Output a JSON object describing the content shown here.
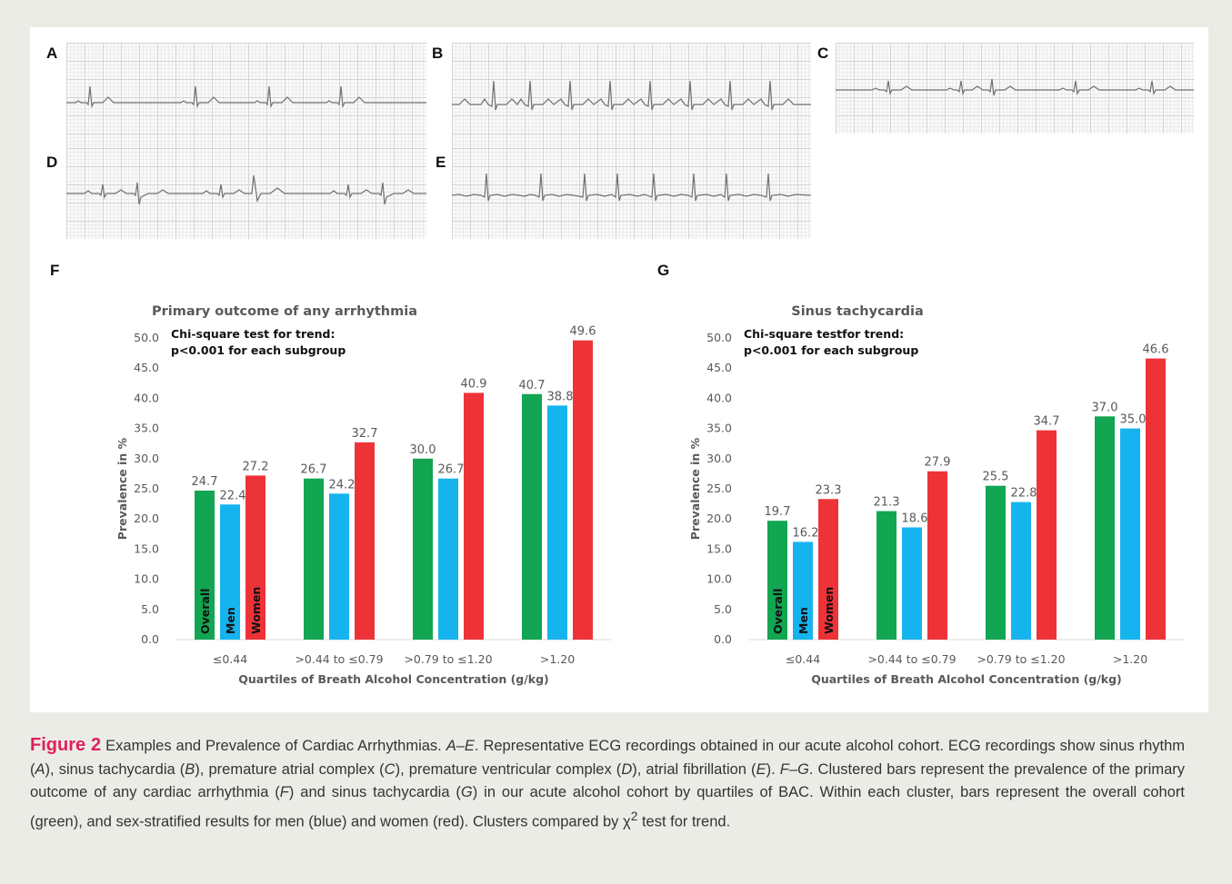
{
  "ecg_panels": [
    {
      "letter": "A",
      "rhythm": "sinus rhythm"
    },
    {
      "letter": "B",
      "rhythm": "sinus tachycardia"
    },
    {
      "letter": "C",
      "rhythm": "premature atrial complex"
    },
    {
      "letter": "D",
      "rhythm": "premature ventricular complex"
    },
    {
      "letter": "E",
      "rhythm": "atrial fibrillation"
    }
  ],
  "colors": {
    "overall": "#12a552",
    "men": "#16b4ef",
    "women": "#ee3338",
    "axis_text": "#595959",
    "title_text": "#595959",
    "caption_accent": "#e0205a"
  },
  "chart_data": [
    {
      "panel_letter": "F",
      "type": "bar",
      "title": "Primary outcome of any arrhythmia",
      "annotation_line1": "Chi-square test for trend:",
      "annotation_line2": "p<0.001 for each subgroup",
      "xlabel": "Quartiles of Breath Alcohol Concentration (g/kg)",
      "ylabel": "Prevalence in %",
      "ylim": [
        0,
        50
      ],
      "yticks": [
        "0.0",
        "5.0",
        "10.0",
        "15.0",
        "20.0",
        "25.0",
        "30.0",
        "35.0",
        "40.0",
        "45.0",
        "50.0"
      ],
      "categories": [
        "≤0.44",
        ">0.44 to ≤0.79",
        ">0.79 to ≤1.20",
        ">1.20"
      ],
      "series": [
        {
          "name": "Overall",
          "values": [
            24.7,
            26.7,
            30.0,
            40.7
          ],
          "labels": [
            "24.7",
            "26.7",
            "30.0",
            "40.7"
          ]
        },
        {
          "name": "Men",
          "values": [
            22.4,
            24.2,
            26.7,
            38.8
          ],
          "labels": [
            "22.4",
            "24.2",
            "26.7",
            "38.8"
          ]
        },
        {
          "name": "Women",
          "values": [
            27.2,
            32.7,
            40.9,
            49.6
          ],
          "labels": [
            "27.2",
            "32.7",
            "40.9",
            "49.6"
          ]
        }
      ],
      "legend": "series names inside first cluster bars",
      "grid": false
    },
    {
      "panel_letter": "G",
      "type": "bar",
      "title": "Sinus tachycardia",
      "annotation_line1": "Chi-square testfor trend:",
      "annotation_line2": "p<0.001 for each subgroup",
      "xlabel": "Quartiles of Breath Alcohol Concentration (g/kg)",
      "ylabel": "Prevalence in %",
      "ylim": [
        0,
        50
      ],
      "yticks": [
        "0.0",
        "5.0",
        "10.0",
        "15.0",
        "20.0",
        "25.0",
        "30.0",
        "35.0",
        "40.0",
        "45.0",
        "50.0"
      ],
      "categories": [
        "≤0.44",
        ">0.44 to ≤0.79",
        ">0.79 to ≤1.20",
        ">1.20"
      ],
      "series": [
        {
          "name": "Overall",
          "values": [
            19.7,
            21.3,
            25.5,
            37.0
          ],
          "labels": [
            "19.7",
            "21.3",
            "25.5",
            "37.0"
          ]
        },
        {
          "name": "Men",
          "values": [
            16.2,
            18.6,
            22.8,
            35.0
          ],
          "labels": [
            "16.2",
            "18.6",
            "22.8",
            "35.0"
          ]
        },
        {
          "name": "Women",
          "values": [
            23.3,
            27.9,
            34.7,
            46.6
          ],
          "labels": [
            "23.3",
            "27.9",
            "34.7",
            "46.6"
          ]
        }
      ],
      "legend": "series names inside first cluster bars",
      "grid": false
    }
  ],
  "caption": {
    "label": "Figure 2",
    "title": "Examples and Prevalence of Cardiac Arrhythmias.",
    "range1": "A–E",
    "text1": ". Representative ECG recordings obtained in our acute alcohol cohort. ECG recordings show sinus rhythm (",
    "a": "A",
    "text2": "), sinus tachycardia (",
    "b": "B",
    "text3": "), premature atrial complex (",
    "c": "C",
    "text4": "), premature ventricular complex (",
    "d": "D",
    "text5": "), atrial fibrillation (",
    "e": "E",
    "text6": "). ",
    "range2": "F–G",
    "text7": ". Clustered bars represent the prevalence of the primary outcome of any cardiac arrhythmia (",
    "f": "F",
    "text8": ") and sinus tachycardia (",
    "g": "G",
    "text9": ") in our acute alcohol cohort by quartiles of BAC. Within each cluster, bars represent the overall cohort (green), and sex-stratified results for men (blue) and women (red). Clusters compared by ",
    "chi": "χ",
    "sup": "2",
    "text10": " test for trend."
  }
}
